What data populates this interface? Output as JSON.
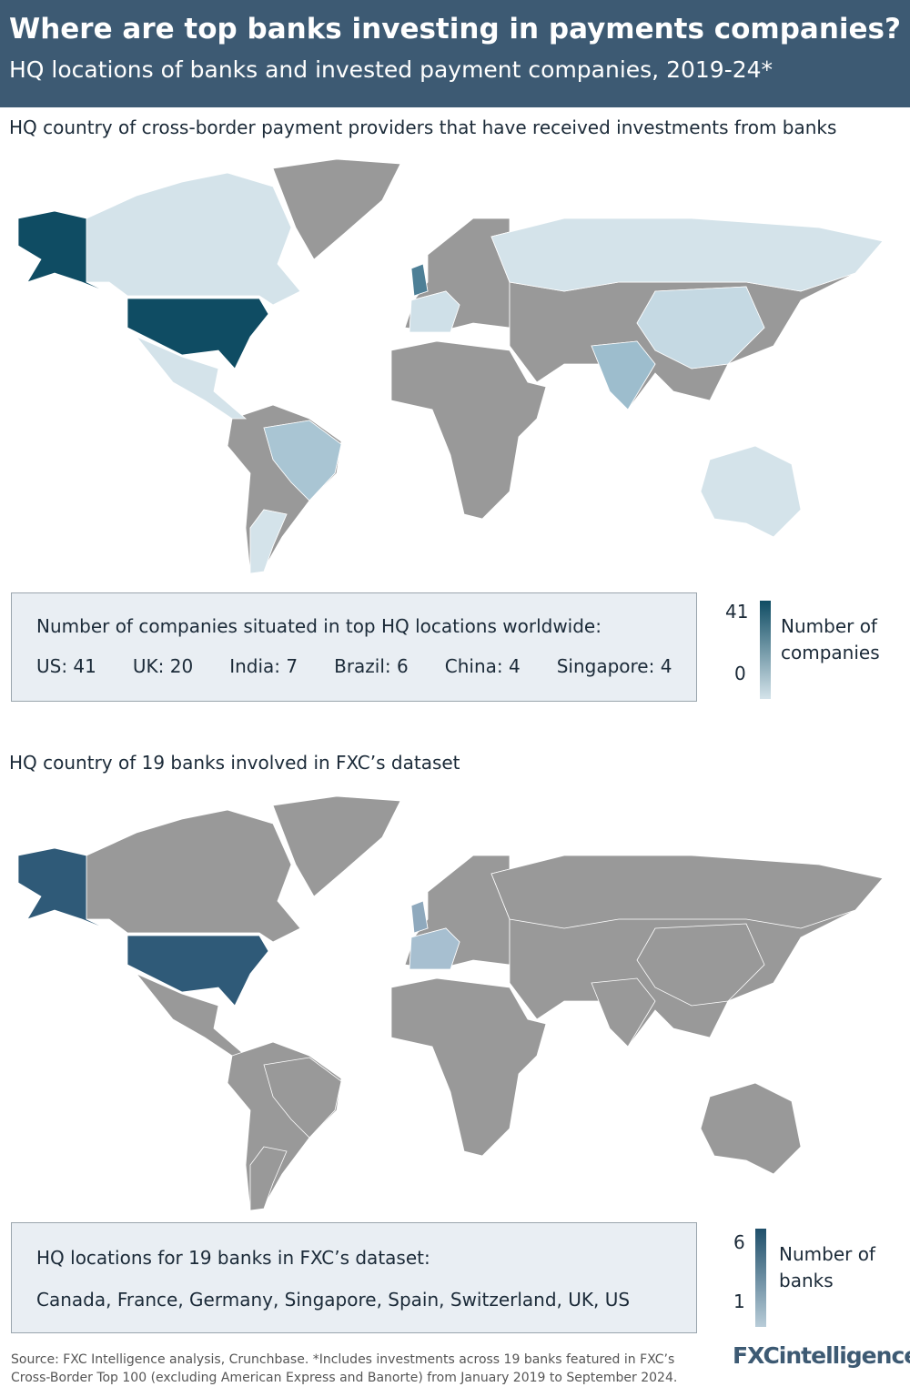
{
  "header": {
    "title": "Where are top banks investing in payments companies?",
    "subtitle": "HQ locations of banks and invested payment companies, 2019-24*"
  },
  "map1": {
    "heading": "HQ country of cross-border payment providers that have received investments from banks",
    "box_title": "Number of companies situated in top HQ locations worldwide:",
    "items": [
      "US: 41",
      "UK: 20",
      "India: 7",
      "Brazil: 6",
      "China: 4",
      "Singapore: 4"
    ],
    "legend": {
      "max": 41,
      "min": 0,
      "label": "Number of companies"
    }
  },
  "map2": {
    "heading": "HQ country of 19 banks involved in FXC’s dataset",
    "box_title": "HQ locations for 19 banks in FXC’s dataset:",
    "items": [
      "Canada, France, Germany, Singapore, Spain, Switzerland, UK, US"
    ],
    "legend": {
      "max": 6,
      "min": 1,
      "label": "Number of banks"
    }
  },
  "footer": {
    "source": "Source: FXC Intelligence analysis, Crunchbase. *Includes investments across 19 banks featured in FXC’s Cross-Border Top 100 (excluding American Express and Banorte) from January 2019 to September 2024.",
    "logo": "FXCintelligence"
  }
}
